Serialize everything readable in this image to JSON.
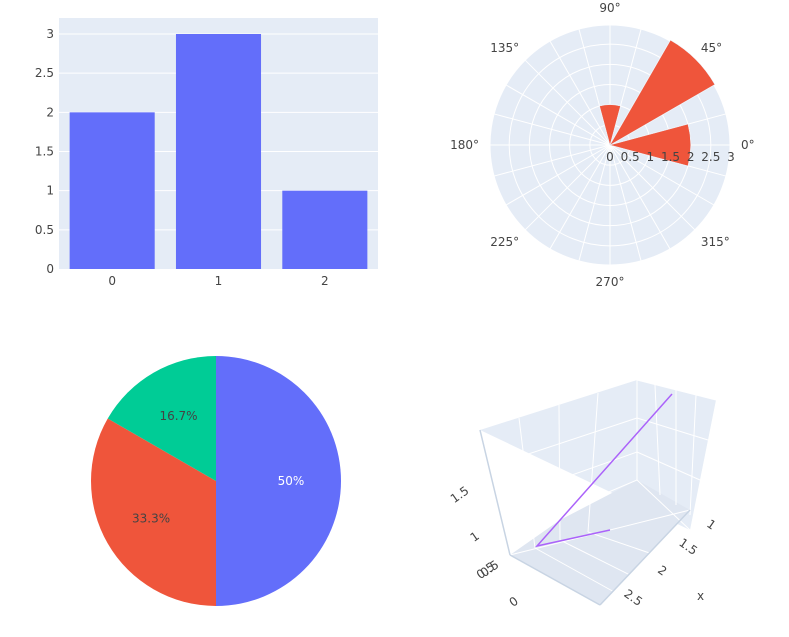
{
  "chart_data": [
    {
      "type": "bar",
      "categories": [
        "0",
        "1",
        "2"
      ],
      "values": [
        2,
        3,
        1
      ],
      "ylim": [
        0,
        3
      ],
      "yticks": [
        0,
        0.5,
        1,
        1.5,
        2,
        2.5,
        3
      ],
      "ytick_labels": [
        "0",
        "0.5",
        "1",
        "1.5",
        "2",
        "2.5",
        "3"
      ],
      "color": "#636efa",
      "plot_bg": "#e5ecf6",
      "grid": true
    },
    {
      "type": "barpolar",
      "r": [
        2,
        3,
        1
      ],
      "theta": [
        0,
        45,
        90
      ],
      "width_deg": [
        30,
        30,
        30
      ],
      "radial_ticks": [
        0,
        0.5,
        1,
        1.5,
        2,
        2.5,
        3
      ],
      "radial_tick_labels": [
        "0",
        "0.5",
        "1",
        "1.5",
        "2",
        "2.5",
        "3"
      ],
      "angular_ticks": [
        0,
        45,
        90,
        135,
        180,
        225,
        270,
        315
      ],
      "angular_tick_labels": [
        "0°",
        "45°",
        "90°",
        "135°",
        "180°",
        "225°",
        "270°",
        "315°"
      ],
      "rmax": 3,
      "color": "#ef553b",
      "plot_bg": "#e5ecf6"
    },
    {
      "type": "pie",
      "values": [
        3,
        2,
        1
      ],
      "percent_labels": [
        "50%",
        "33.3%",
        "16.7%"
      ],
      "colors": [
        "#636efa",
        "#ef553b",
        "#00cc96"
      ],
      "label_colors": [
        "#ffffff",
        "#444444",
        "#444444"
      ]
    },
    {
      "type": "scatter3d",
      "mode": "lines",
      "x": [
        1,
        2,
        3
      ],
      "y": [
        0,
        1,
        2
      ],
      "z": [
        0.5,
        1.7,
        0.9
      ],
      "color": "#ab63fa",
      "axis_title_x": "x",
      "x_tick_labels": [
        "1",
        "1.5",
        "2",
        "2.5"
      ],
      "y_tick_labels": [
        "0",
        "0.5"
      ],
      "z_tick_labels": [
        "0.5",
        "1",
        "1.5"
      ],
      "scene_bg": "#e5ecf6"
    }
  ]
}
